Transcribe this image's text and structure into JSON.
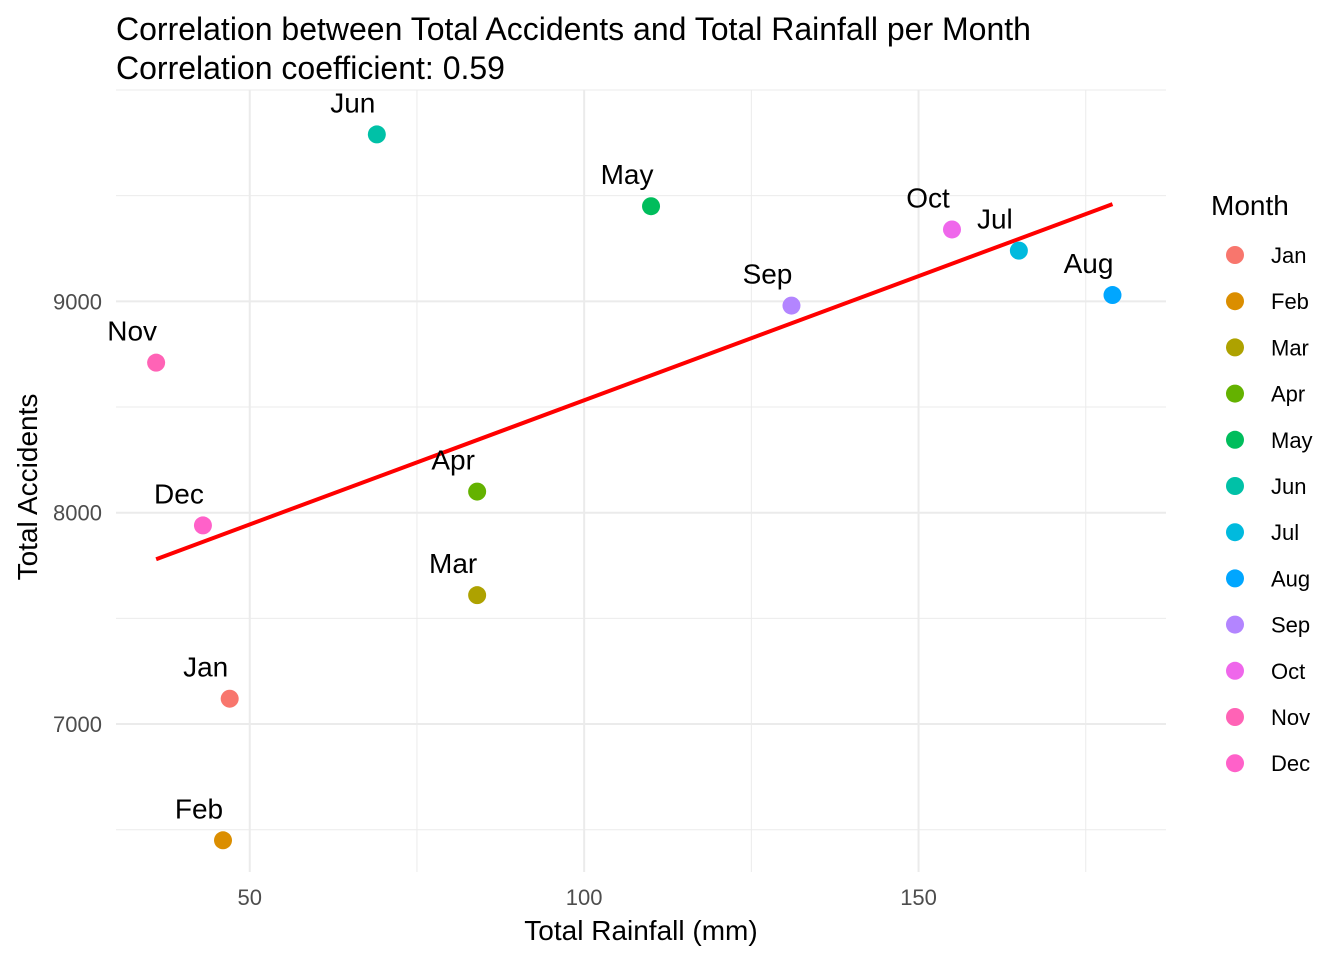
{
  "chart_data": {
    "type": "scatter",
    "title": "Correlation between Total Accidents and Total Rainfall per Month",
    "subtitle": "Correlation coefficient: 0.59",
    "xlabel": "Total Rainfall (mm)",
    "ylabel": "Total Accidents",
    "xlim": [
      30,
      187
    ],
    "ylim": [
      6300,
      10000
    ],
    "x_ticks": [
      50,
      100,
      150
    ],
    "y_ticks": [
      7000,
      8000,
      9000
    ],
    "grid": true,
    "legend": {
      "title": "Month",
      "placement": "right"
    },
    "points": [
      {
        "label": "Jan",
        "x": 47,
        "y": 7120,
        "color": "#F8766D"
      },
      {
        "label": "Feb",
        "x": 46,
        "y": 6450,
        "color": "#DB8E00"
      },
      {
        "label": "Mar",
        "x": 84,
        "y": 7610,
        "color": "#AEA200"
      },
      {
        "label": "Apr",
        "x": 84,
        "y": 8100,
        "color": "#64B200"
      },
      {
        "label": "May",
        "x": 110,
        "y": 9450,
        "color": "#00BD5C"
      },
      {
        "label": "Jun",
        "x": 69,
        "y": 9790,
        "color": "#00C1A7"
      },
      {
        "label": "Jul",
        "x": 165,
        "y": 9240,
        "color": "#00BADE"
      },
      {
        "label": "Aug",
        "x": 179,
        "y": 9030,
        "color": "#00A6FF"
      },
      {
        "label": "Sep",
        "x": 131,
        "y": 8980,
        "color": "#B385FF"
      },
      {
        "label": "Oct",
        "x": 155,
        "y": 9340,
        "color": "#EF67EB"
      },
      {
        "label": "Nov",
        "x": 36,
        "y": 8710,
        "color": "#FF63B6"
      },
      {
        "label": "Dec",
        "x": 43,
        "y": 7940,
        "color": "#FF61C9"
      }
    ],
    "fit_line": {
      "x": [
        36,
        179
      ],
      "y": [
        7780,
        9460
      ],
      "color": "#FF0000"
    }
  }
}
